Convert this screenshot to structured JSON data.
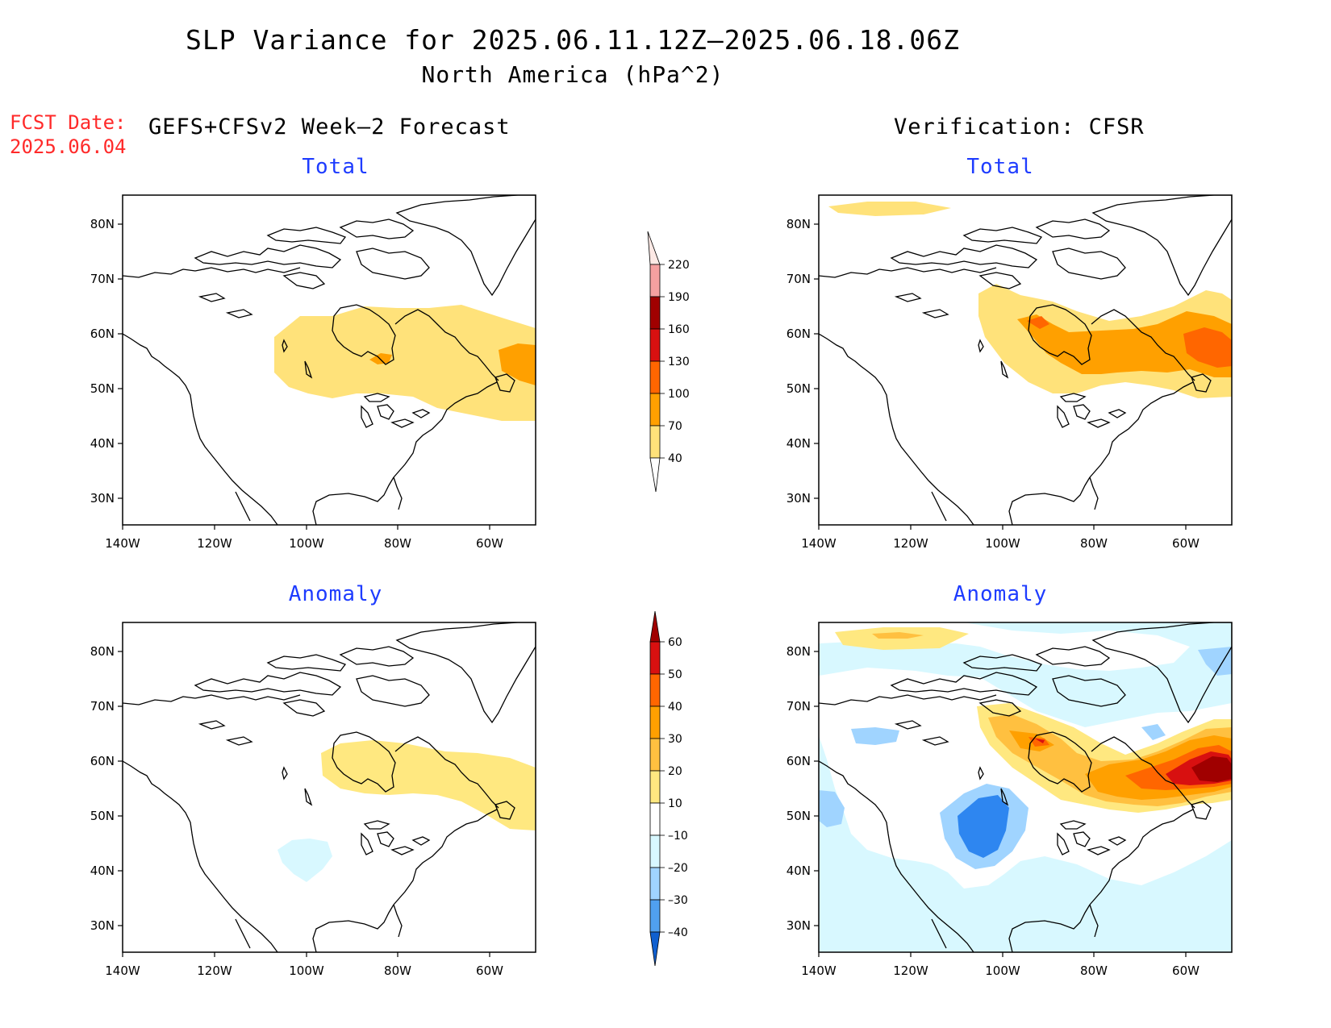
{
  "title": {
    "line1": "SLP Variance for 2025.06.11.12Z–2025.06.18.06Z",
    "line2": "North America (hPa^2)"
  },
  "fcst": {
    "label": "FCST Date:",
    "date": "2025.06.04"
  },
  "left_header": "GEFS+CFSv2 Week–2 Forecast",
  "right_header": "Verification: CFSR",
  "panels": {
    "top_left": "Total",
    "top_right": "Total",
    "bottom_left": "Anomaly",
    "bottom_right": "Anomaly"
  },
  "axes": {
    "lat_labels": [
      "80N",
      "70N",
      "60N",
      "50N",
      "40N",
      "30N"
    ],
    "lon_labels": [
      "140W",
      "120W",
      "100W",
      "80W",
      "60W"
    ]
  },
  "colorbar_total": {
    "levels": [
      "220",
      "190",
      "160",
      "130",
      "100",
      "70",
      "40"
    ],
    "colors": [
      "#f5a0a0",
      "#a00000",
      "#d81010",
      "#ff6600",
      "#ffa000",
      "#ffe27a",
      "#ffffff"
    ]
  },
  "colorbar_anomaly": {
    "levels": [
      "60",
      "50",
      "40",
      "30",
      "20",
      "10",
      "–10",
      "–20",
      "–30",
      "–40"
    ],
    "colors": [
      "#a00000",
      "#d81010",
      "#ff6600",
      "#ffa000",
      "#ffc040",
      "#ffe880",
      "#ffffff",
      "#d8f8ff",
      "#a0d4ff",
      "#50a0f0",
      "#2070e0",
      "#1060d0"
    ]
  }
}
